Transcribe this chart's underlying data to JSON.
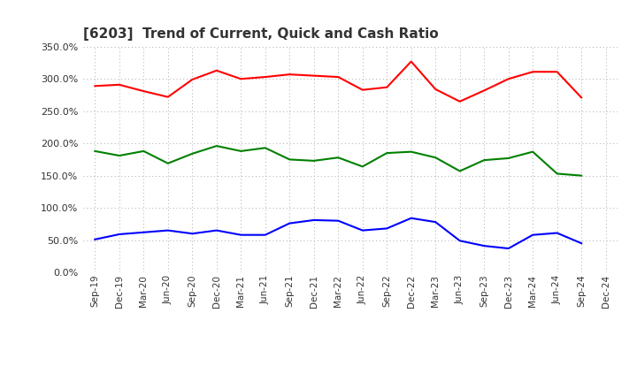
{
  "title": "[6203]  Trend of Current, Quick and Cash Ratio",
  "x_labels": [
    "Sep-19",
    "Dec-19",
    "Mar-20",
    "Jun-20",
    "Sep-20",
    "Dec-20",
    "Mar-21",
    "Jun-21",
    "Sep-21",
    "Dec-21",
    "Mar-22",
    "Jun-22",
    "Sep-22",
    "Dec-22",
    "Mar-23",
    "Jun-23",
    "Sep-23",
    "Dec-23",
    "Mar-24",
    "Jun-24",
    "Sep-24",
    "Dec-24"
  ],
  "current_ratio": [
    289,
    291,
    281,
    272,
    299,
    313,
    300,
    303,
    307,
    305,
    303,
    283,
    287,
    327,
    284,
    265,
    282,
    300,
    311,
    311,
    271,
    null
  ],
  "quick_ratio": [
    188,
    181,
    188,
    169,
    184,
    196,
    188,
    193,
    175,
    173,
    178,
    164,
    185,
    187,
    178,
    157,
    174,
    177,
    187,
    153,
    150,
    null
  ],
  "cash_ratio": [
    51,
    59,
    62,
    65,
    60,
    65,
    58,
    58,
    76,
    81,
    80,
    65,
    68,
    84,
    78,
    49,
    41,
    37,
    58,
    61,
    45,
    null
  ],
  "current_color": "#FF0000",
  "quick_color": "#008000",
  "cash_color": "#0000FF",
  "ylim": [
    0,
    350
  ],
  "yticks": [
    0,
    50,
    100,
    150,
    200,
    250,
    300,
    350
  ],
  "background_color": "#FFFFFF",
  "grid_color": "#AAAAAA",
  "title_color": "#333333"
}
